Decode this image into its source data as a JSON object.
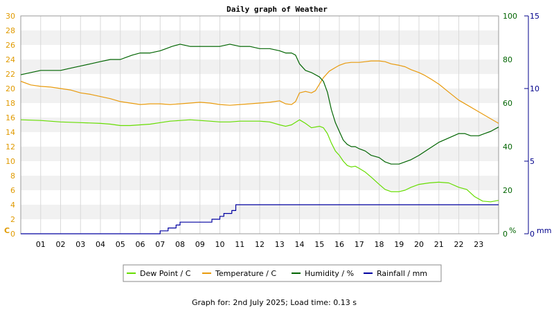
{
  "chart_data": {
    "type": "line",
    "title": "Daily graph of Weather",
    "x_ticks": [
      "01",
      "02",
      "03",
      "04",
      "05",
      "06",
      "07",
      "08",
      "09",
      "10",
      "11",
      "12",
      "13",
      "14",
      "15",
      "16",
      "17",
      "18",
      "19",
      "20",
      "21",
      "22",
      "23"
    ],
    "xlim": [
      0,
      24
    ],
    "axes": {
      "left": {
        "label": "C",
        "ylim": [
          0,
          30
        ],
        "ticks": [
          0,
          2,
          4,
          6,
          8,
          10,
          12,
          14,
          16,
          18,
          20,
          22,
          24,
          26,
          28,
          30
        ],
        "color": "#e09a00"
      },
      "right1": {
        "label": "%",
        "ylim": [
          0,
          100
        ],
        "ticks": [
          0,
          20,
          40,
          60,
          80,
          100
        ],
        "color": "#006400"
      },
      "right2": {
        "label": "mm",
        "ylim": [
          0,
          15
        ],
        "ticks": [
          0,
          5,
          10,
          15
        ],
        "color": "#00008b"
      }
    },
    "grid": true,
    "legend_position": "bottom",
    "series": [
      {
        "name": "Dew Point / C",
        "axis": "left",
        "color": "#66dd00",
        "x": [
          0,
          1,
          2,
          3,
          4,
          4.5,
          5,
          5.5,
          6,
          6.5,
          7,
          7.5,
          8,
          8.5,
          9,
          9.5,
          10,
          10.5,
          11,
          11.5,
          12,
          12.5,
          13,
          13.3,
          13.6,
          14,
          14.3,
          14.6,
          15,
          15.2,
          15.4,
          15.6,
          15.8,
          16,
          16.2,
          16.4,
          16.6,
          16.8,
          17,
          17.3,
          17.6,
          18,
          18.3,
          18.6,
          19,
          19.3,
          19.6,
          20,
          20.5,
          21,
          21.5,
          22,
          22.4,
          22.8,
          23.2,
          23.6,
          24
        ],
        "y": [
          15.7,
          15.6,
          15.4,
          15.3,
          15.2,
          15.1,
          14.9,
          14.9,
          15.0,
          15.1,
          15.3,
          15.5,
          15.6,
          15.7,
          15.6,
          15.5,
          15.4,
          15.4,
          15.5,
          15.5,
          15.5,
          15.4,
          15.0,
          14.8,
          15.0,
          15.7,
          15.2,
          14.6,
          14.8,
          14.6,
          13.8,
          12.5,
          11.4,
          10.8,
          10.0,
          9.4,
          9.2,
          9.3,
          9.0,
          8.5,
          7.8,
          6.8,
          6.1,
          5.8,
          5.8,
          6.0,
          6.4,
          6.8,
          7.0,
          7.1,
          7.0,
          6.4,
          6.1,
          5.1,
          4.5,
          4.4,
          4.6
        ]
      },
      {
        "name": "Temperature / C",
        "axis": "left",
        "color": "#e89a0c",
        "x": [
          0,
          0.5,
          1,
          1.5,
          2,
          2.5,
          3,
          3.5,
          4,
          4.5,
          5,
          5.5,
          6,
          6.5,
          7,
          7.5,
          8,
          8.5,
          9,
          9.5,
          10,
          10.5,
          11,
          11.5,
          12,
          12.5,
          13,
          13.3,
          13.6,
          13.8,
          14,
          14.3,
          14.6,
          14.8,
          15,
          15.2,
          15.5,
          15.8,
          16,
          16.3,
          16.6,
          17,
          17.3,
          17.6,
          18,
          18.3,
          18.6,
          19,
          19.3,
          19.6,
          20,
          20.3,
          20.6,
          21,
          21.5,
          22,
          22.5,
          23,
          23.5,
          24
        ],
        "y": [
          21.0,
          20.5,
          20.3,
          20.2,
          20.0,
          19.8,
          19.4,
          19.2,
          18.9,
          18.6,
          18.2,
          18.0,
          17.8,
          17.9,
          17.9,
          17.8,
          17.9,
          18.0,
          18.1,
          18.0,
          17.8,
          17.7,
          17.8,
          17.9,
          18.0,
          18.1,
          18.3,
          17.9,
          17.8,
          18.2,
          19.4,
          19.6,
          19.4,
          19.7,
          20.6,
          21.5,
          22.4,
          22.9,
          23.2,
          23.5,
          23.6,
          23.6,
          23.7,
          23.8,
          23.8,
          23.7,
          23.4,
          23.2,
          23.0,
          22.6,
          22.2,
          21.8,
          21.3,
          20.6,
          19.5,
          18.4,
          17.6,
          16.8,
          16.0,
          15.2
        ]
      },
      {
        "name": "Humidity / %",
        "axis": "right1",
        "color": "#006400",
        "x": [
          0,
          0.5,
          1,
          1.5,
          2,
          2.5,
          3,
          3.5,
          4,
          4.5,
          5,
          5.3,
          5.6,
          6,
          6.5,
          7,
          7.3,
          7.6,
          8,
          8.5,
          9,
          9.5,
          10,
          10.5,
          11,
          11.5,
          12,
          12.5,
          13,
          13.3,
          13.6,
          13.8,
          14,
          14.3,
          14.6,
          15,
          15.2,
          15.4,
          15.6,
          15.8,
          16,
          16.2,
          16.4,
          16.6,
          16.8,
          17,
          17.3,
          17.6,
          18,
          18.3,
          18.6,
          19,
          19.3,
          19.6,
          20,
          20.5,
          21,
          21.5,
          22,
          22.3,
          22.6,
          23,
          23.3,
          23.6,
          24
        ],
        "y": [
          73,
          74,
          75,
          75,
          75,
          76,
          77,
          78,
          79,
          80,
          80,
          81,
          82,
          83,
          83,
          84,
          85,
          86,
          87,
          86,
          86,
          86,
          86,
          87,
          86,
          86,
          85,
          85,
          84,
          83,
          83,
          82,
          78,
          75,
          74,
          72,
          70,
          65,
          57,
          51,
          47,
          43,
          41,
          40,
          40,
          39,
          38,
          36,
          35,
          33,
          32,
          32,
          33,
          34,
          36,
          39,
          42,
          44,
          46,
          46,
          45,
          45,
          46,
          47,
          49
        ]
      },
      {
        "name": "Rainfall / mm",
        "axis": "right2",
        "color": "#0000a0",
        "step": true,
        "x": [
          0,
          6.9,
          7.0,
          7.4,
          7.8,
          8.0,
          8.6,
          9.0,
          9.4,
          9.6,
          10.0,
          10.2,
          10.6,
          10.8,
          24
        ],
        "y": [
          0,
          0,
          0.2,
          0.4,
          0.6,
          0.8,
          0.8,
          0.8,
          0.8,
          1.0,
          1.2,
          1.4,
          1.6,
          2.0,
          2.0
        ]
      }
    ]
  },
  "legend": [
    {
      "label": "Dew Point / C",
      "color": "#66dd00"
    },
    {
      "label": "Temperature / C",
      "color": "#e89a0c"
    },
    {
      "label": "Humidity / %",
      "color": "#006400"
    },
    {
      "label": "Rainfall / mm",
      "color": "#0000a0"
    }
  ],
  "footer": {
    "text": "Graph for: 2nd July 2025; Load time: 0.13 s"
  }
}
